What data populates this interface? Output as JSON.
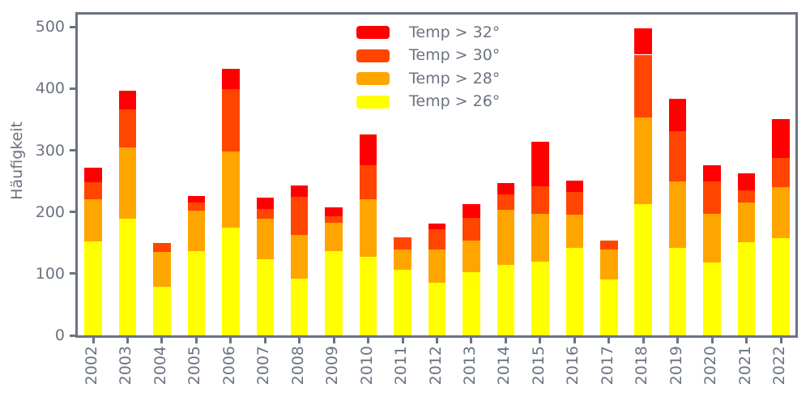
{
  "chart_data": {
    "type": "bar",
    "stacked": true,
    "title": "",
    "xlabel": "",
    "ylabel": "Häufigkeit",
    "categories": [
      "2002",
      "2003",
      "2004",
      "2005",
      "2006",
      "2007",
      "2008",
      "2009",
      "2010",
      "2011",
      "2012",
      "2013",
      "2014",
      "2015",
      "2016",
      "2017",
      "2018",
      "2019",
      "2020",
      "2021",
      "2022"
    ],
    "series": [
      {
        "name": "Temp > 26°",
        "color": "#ffff00",
        "values": [
          152,
          189,
          79,
          136,
          175,
          123,
          92,
          136,
          128,
          106,
          86,
          102,
          114,
          120,
          142,
          90,
          213,
          142,
          118,
          151,
          157
        ]
      },
      {
        "name": "Temp > 28°",
        "color": "#ffa500",
        "values": [
          68,
          116,
          56,
          66,
          123,
          66,
          71,
          46,
          93,
          33,
          53,
          52,
          90,
          77,
          54,
          49,
          140,
          108,
          79,
          65,
          83
        ]
      },
      {
        "name": "Temp > 30°",
        "color": "#ff4500",
        "values": [
          28,
          62,
          15,
          13,
          101,
          16,
          61,
          11,
          55,
          20,
          33,
          36,
          24,
          44,
          37,
          15,
          102,
          81,
          52,
          19,
          48
        ]
      },
      {
        "name": "Temp > 32°",
        "color": "#ff0000",
        "values": [
          24,
          30,
          0,
          11,
          33,
          18,
          19,
          15,
          50,
          0,
          9,
          23,
          19,
          73,
          18,
          0,
          43,
          53,
          27,
          27,
          62
        ]
      }
    ],
    "totals": [
      272,
      397,
      150,
      226,
      432,
      223,
      243,
      208,
      326,
      159,
      181,
      213,
      247,
      314,
      251,
      154,
      498,
      384,
      276,
      262,
      350
    ],
    "legend_entries_top_to_bottom": [
      "Temp > 32°",
      "Temp > 30°",
      "Temp > 28°",
      "Temp > 26°"
    ],
    "legend_position": "upper center",
    "yticks": [
      0,
      100,
      200,
      300,
      400,
      500
    ],
    "ylim": [
      0,
      520
    ],
    "grid": false,
    "axis_color": "#6b7380",
    "background_color": "#ffffff"
  }
}
